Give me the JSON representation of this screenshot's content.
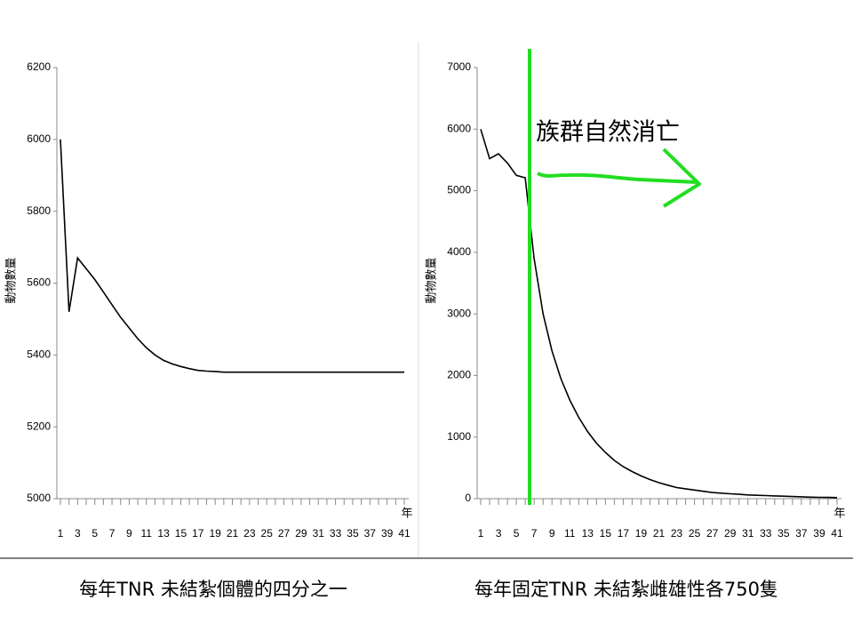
{
  "chart_data": [
    {
      "type": "line",
      "title": "每年TNR 未結紮個體的四分之一",
      "ylabel": "動物數量",
      "xlabel": "年",
      "x": [
        1,
        2,
        3,
        4,
        5,
        6,
        7,
        8,
        9,
        10,
        11,
        12,
        13,
        14,
        15,
        16,
        17,
        18,
        19,
        20,
        21,
        22,
        23,
        24,
        25,
        26,
        27,
        28,
        29,
        30,
        31,
        32,
        33,
        34,
        35,
        36,
        37,
        38,
        39,
        40,
        41
      ],
      "values": [
        6000,
        5520,
        5670,
        5640,
        5610,
        5575,
        5540,
        5505,
        5475,
        5445,
        5420,
        5400,
        5385,
        5375,
        5368,
        5362,
        5357,
        5355,
        5354,
        5352,
        5352,
        5352,
        5352,
        5352,
        5352,
        5352,
        5352,
        5352,
        5352,
        5352,
        5352,
        5352,
        5352,
        5352,
        5352,
        5352,
        5352,
        5352,
        5352,
        5352,
        5352
      ],
      "color": "#000000",
      "xlim": [
        1,
        41
      ],
      "xticks": [
        1,
        3,
        5,
        7,
        9,
        11,
        13,
        15,
        17,
        19,
        21,
        23,
        25,
        27,
        29,
        31,
        33,
        35,
        37,
        39,
        41
      ],
      "ylim": [
        5000,
        6200
      ],
      "yticks": [
        5000,
        5200,
        5400,
        5600,
        5800,
        6000,
        6200
      ]
    },
    {
      "type": "line",
      "title": "每年固定TNR 未結紮雌雄性各750隻",
      "ylabel": "動物數量",
      "xlabel": "年",
      "annotation": "族群自然消亡",
      "x": [
        1,
        2,
        3,
        4,
        5,
        6,
        7,
        8,
        9,
        10,
        11,
        12,
        13,
        14,
        15,
        16,
        17,
        18,
        19,
        20,
        21,
        22,
        23,
        24,
        25,
        26,
        27,
        28,
        29,
        30,
        31,
        32,
        33,
        34,
        35,
        36,
        37,
        38,
        39,
        40,
        41
      ],
      "values": [
        6000,
        5520,
        5600,
        5450,
        5250,
        5210,
        3900,
        3000,
        2400,
        1950,
        1600,
        1320,
        1090,
        900,
        750,
        620,
        520,
        440,
        370,
        310,
        260,
        220,
        180,
        160,
        140,
        120,
        100,
        90,
        80,
        70,
        60,
        55,
        50,
        45,
        40,
        35,
        30,
        25,
        22,
        20,
        18
      ],
      "color": "#000000",
      "xlim": [
        1,
        41
      ],
      "xticks": [
        1,
        3,
        5,
        7,
        9,
        11,
        13,
        15,
        17,
        19,
        21,
        23,
        25,
        27,
        29,
        31,
        33,
        35,
        37,
        39,
        41
      ],
      "ylim": [
        0,
        7000
      ],
      "yticks": [
        0,
        1000,
        2000,
        3000,
        4000,
        5000,
        6000,
        7000
      ]
    }
  ]
}
